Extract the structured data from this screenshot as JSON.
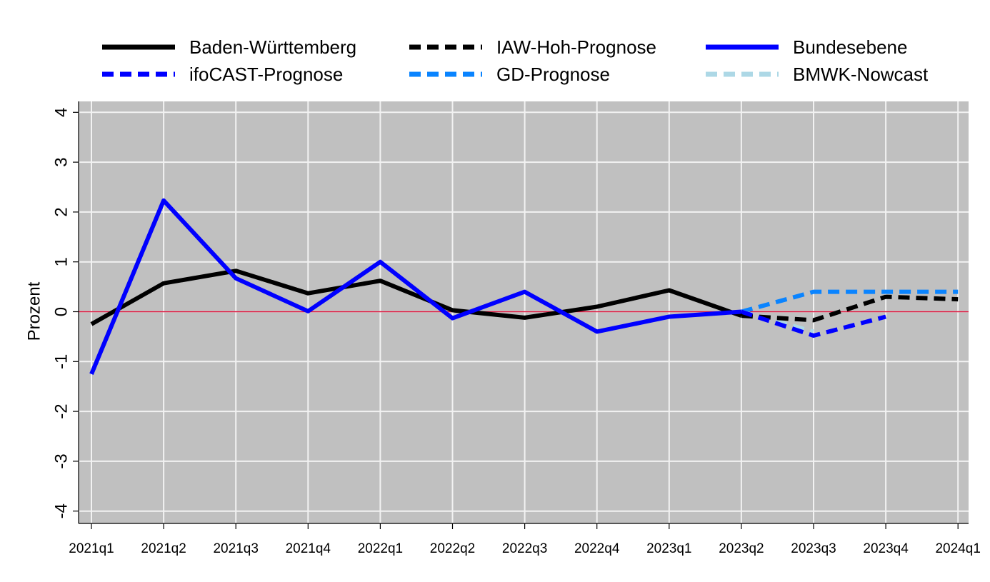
{
  "chart_data": {
    "type": "line",
    "title": "",
    "xlabel": "",
    "ylabel": "Prozent",
    "ylim": [
      -4.3,
      4.3
    ],
    "yticks": [
      -4,
      -3,
      -2,
      -1,
      0,
      1,
      2,
      3,
      4
    ],
    "ytick_labels": [
      "-4",
      "-3",
      "-2",
      "-1",
      "0",
      "1",
      "2",
      "3",
      "4"
    ],
    "categories": [
      "2021q1",
      "2021q2",
      "2021q3",
      "2021q4",
      "2022q1",
      "2022q2",
      "2022q3",
      "2022q4",
      "2023q1",
      "2023q2",
      "2023q3",
      "2023q4",
      "2024q1"
    ],
    "grid": true,
    "reference_line": {
      "y": 0,
      "color": "#dc143c"
    },
    "plot_background": "#c0c0c0",
    "legend": {
      "position": "top",
      "columns": 3
    },
    "series": [
      {
        "name": "Baden-Württemberg",
        "color": "#000000",
        "dashed": false,
        "values": [
          -0.25,
          0.57,
          0.82,
          0.37,
          0.62,
          0.03,
          -0.12,
          0.1,
          0.43,
          -0.08,
          null,
          null,
          null
        ]
      },
      {
        "name": "IAW-Hoh-Prognose",
        "color": "#000000",
        "dashed": true,
        "values": [
          null,
          null,
          null,
          null,
          null,
          null,
          null,
          null,
          null,
          -0.08,
          -0.17,
          0.3,
          0.25
        ]
      },
      {
        "name": "Bundesebene",
        "color": "#0000ff",
        "dashed": false,
        "values": [
          -1.25,
          2.23,
          0.67,
          0.01,
          1.0,
          -0.13,
          0.4,
          -0.4,
          -0.1,
          0.0,
          null,
          null,
          null
        ]
      },
      {
        "name": "ifoCAST-Prognose",
        "color": "#0000ff",
        "dashed": true,
        "values": [
          null,
          null,
          null,
          null,
          null,
          null,
          null,
          null,
          null,
          0.0,
          -0.48,
          -0.1,
          null
        ]
      },
      {
        "name": "GD-Prognose",
        "color": "#0a84ff",
        "dashed": true,
        "values": [
          null,
          null,
          null,
          null,
          null,
          null,
          null,
          null,
          null,
          0.0,
          0.4,
          0.4,
          0.4
        ]
      },
      {
        "name": "BMWK-Nowcast",
        "color": "#add8e6",
        "dashed": true,
        "values": [
          null,
          null,
          null,
          null,
          null,
          null,
          null,
          null,
          null,
          0.0,
          -0.4,
          null,
          null
        ]
      }
    ]
  }
}
